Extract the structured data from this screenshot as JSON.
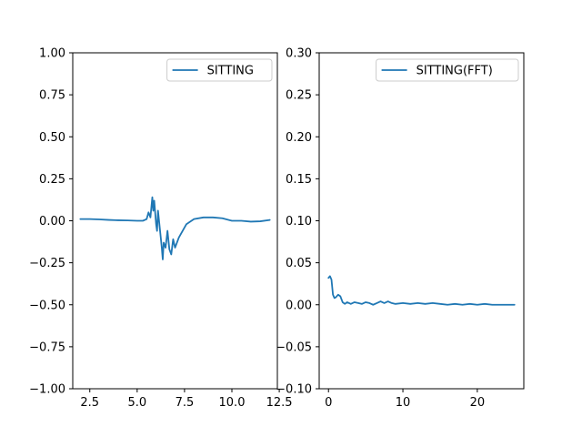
{
  "chart_data": [
    {
      "type": "line",
      "title": "",
      "xlabel": "",
      "ylabel": "",
      "xlim": [
        1.6,
        12.4
      ],
      "ylim": [
        -1.0,
        1.0
      ],
      "xticks": [
        2.5,
        5.0,
        7.5,
        10.0,
        12.5
      ],
      "xtick_labels": [
        "2.5",
        "5.0",
        "7.5",
        "10.0",
        "12.5"
      ],
      "yticks": [
        -1.0,
        -0.75,
        -0.5,
        -0.25,
        0.0,
        0.25,
        0.5,
        0.75,
        1.0
      ],
      "ytick_labels": [
        "−1.00",
        "−0.75",
        "−0.50",
        "−0.25",
        "0.00",
        "0.25",
        "0.50",
        "0.75",
        "1.00"
      ],
      "grid": false,
      "legend_position": "top-right",
      "series": [
        {
          "name": "SITTING",
          "color": "#1f77b4",
          "x": [
            2.0,
            2.5,
            3.0,
            3.5,
            4.0,
            4.5,
            5.0,
            5.3,
            5.5,
            5.6,
            5.7,
            5.8,
            5.85,
            5.9,
            6.0,
            6.05,
            6.1,
            6.2,
            6.3,
            6.35,
            6.4,
            6.5,
            6.6,
            6.7,
            6.8,
            6.9,
            7.0,
            7.2,
            7.4,
            7.6,
            8.0,
            8.5,
            9.0,
            9.5,
            10.0,
            10.5,
            11.0,
            11.5,
            12.0
          ],
          "y": [
            0.01,
            0.01,
            0.008,
            0.005,
            0.003,
            0.002,
            0.0,
            0.0,
            0.01,
            0.05,
            0.02,
            0.14,
            0.06,
            0.12,
            -0.02,
            -0.06,
            0.06,
            -0.05,
            -0.16,
            -0.23,
            -0.13,
            -0.16,
            -0.06,
            -0.17,
            -0.2,
            -0.11,
            -0.16,
            -0.1,
            -0.06,
            -0.02,
            0.01,
            0.02,
            0.02,
            0.015,
            0.0,
            0.0,
            -0.005,
            -0.003,
            0.005
          ]
        }
      ]
    },
    {
      "type": "line",
      "title": "",
      "xlabel": "",
      "ylabel": "",
      "xlim": [
        -1.25,
        26.25
      ],
      "ylim": [
        -0.1,
        0.3
      ],
      "xticks": [
        0,
        10,
        20
      ],
      "xtick_labels": [
        "0",
        "10",
        "20"
      ],
      "yticks": [
        -0.1,
        -0.05,
        0.0,
        0.05,
        0.1,
        0.15,
        0.2,
        0.25,
        0.3
      ],
      "ytick_labels": [
        "−0.10",
        "−0.05",
        "0.00",
        "0.05",
        "0.10",
        "0.15",
        "0.20",
        "0.25",
        "0.30"
      ],
      "grid": false,
      "legend_position": "top-right",
      "series": [
        {
          "name": "SITTING(FFT)",
          "color": "#1f77b4",
          "x": [
            0.0,
            0.2,
            0.4,
            0.6,
            0.8,
            1.0,
            1.3,
            1.6,
            1.9,
            2.2,
            2.5,
            3.0,
            3.5,
            4.0,
            4.5,
            5.0,
            5.5,
            6.0,
            6.5,
            7.0,
            7.5,
            8.0,
            8.5,
            9.0,
            10.0,
            11.0,
            12.0,
            13.0,
            14.0,
            15.0,
            16.0,
            17.0,
            18.0,
            19.0,
            20.0,
            21.0,
            22.0,
            23.0,
            24.0,
            25.0
          ],
          "y": [
            0.032,
            0.034,
            0.03,
            0.012,
            0.008,
            0.009,
            0.012,
            0.01,
            0.003,
            0.001,
            0.003,
            0.001,
            0.003,
            0.002,
            0.001,
            0.003,
            0.002,
            0.0,
            0.002,
            0.004,
            0.002,
            0.004,
            0.002,
            0.001,
            0.002,
            0.001,
            0.002,
            0.001,
            0.002,
            0.001,
            0.0,
            0.001,
            0.0,
            0.001,
            0.0,
            0.001,
            0.0,
            0.0,
            0.0,
            0.0
          ]
        }
      ]
    }
  ]
}
